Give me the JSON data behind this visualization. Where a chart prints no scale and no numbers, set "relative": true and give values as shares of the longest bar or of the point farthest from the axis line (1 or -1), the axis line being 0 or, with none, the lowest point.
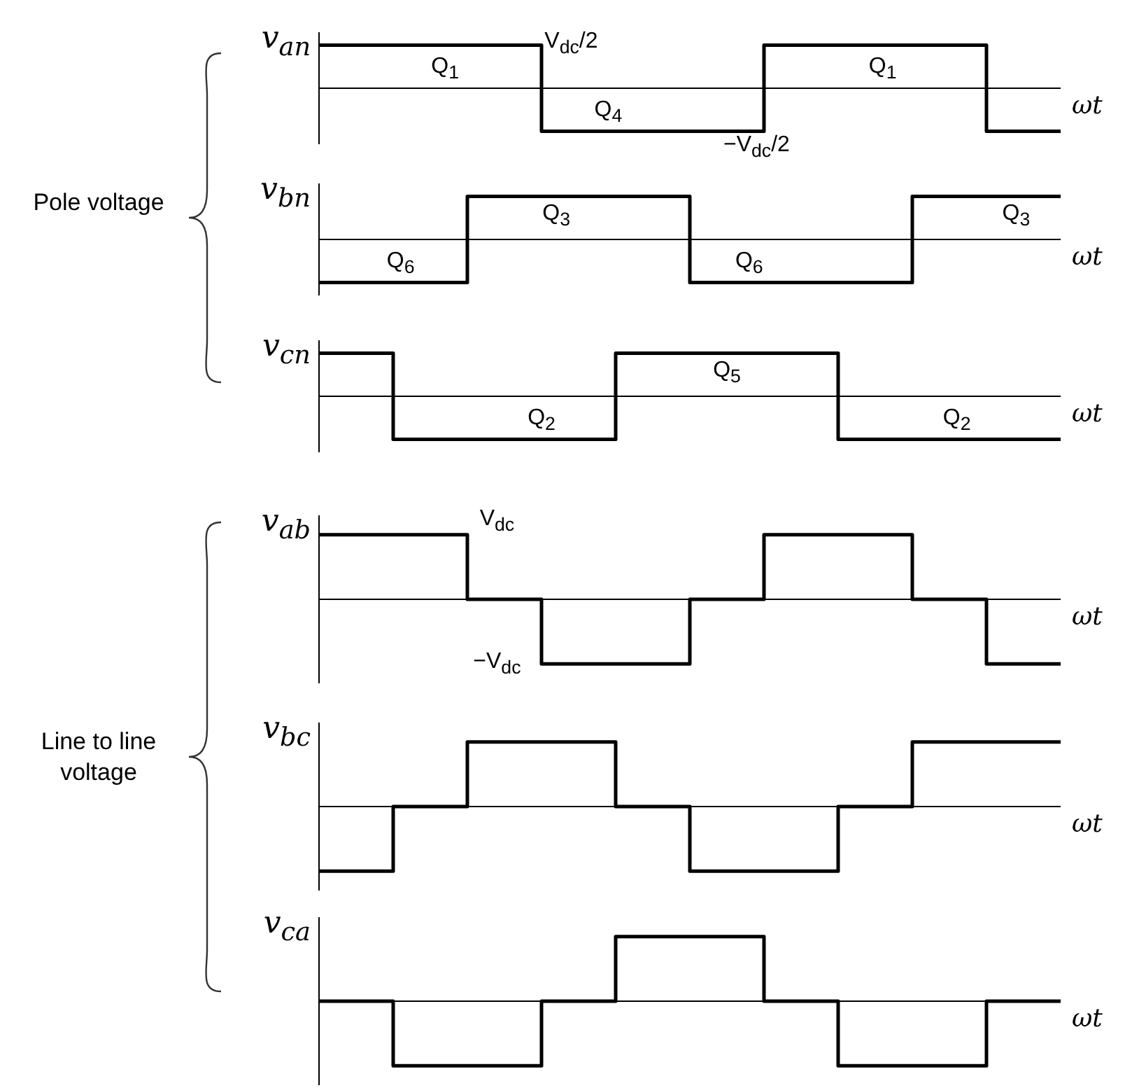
{
  "chart_data": [
    {
      "type": "step",
      "relative": true,
      "ylabel": "v$_{an}$",
      "xlabel": "ωt",
      "categories": [
        null,
        null,
        null,
        null,
        null,
        null,
        null,
        null,
        null,
        null,
        null
      ],
      "values": [
        1,
        1,
        1,
        -1,
        -1,
        -1,
        1,
        1,
        1,
        -1,
        -1
      ],
      "color": "#000000",
      "annotations": [
        "Q$_{1}$",
        "Q$_{4}$",
        "Q$_{1}$",
        "V$_{dc}$/2",
        "−V$_{dc}$/2",
        "Pole voltage"
      ]
    },
    {
      "type": "step",
      "relative": true,
      "ylabel": "v$_{bn}$",
      "xlabel": "ωt",
      "categories": [
        null,
        null,
        null,
        null,
        null,
        null,
        null,
        null,
        null,
        null,
        null
      ],
      "values": [
        -1,
        -1,
        1,
        1,
        1,
        -1,
        -1,
        -1,
        1,
        1,
        1
      ],
      "color": "#000000",
      "annotations": [
        "Q$_{6}$",
        "Q$_{3}$",
        "Q$_{6}$",
        "Q$_{3}$"
      ]
    },
    {
      "type": "step",
      "relative": true,
      "ylabel": "v$_{cn}$",
      "xlabel": "ωt",
      "categories": [
        null,
        null,
        null,
        null,
        null,
        null,
        null,
        null,
        null,
        null,
        null
      ],
      "values": [
        1,
        -1,
        -1,
        -1,
        1,
        1,
        1,
        -1,
        -1,
        -1,
        -1
      ],
      "color": "#000000",
      "annotations": [
        "Q$_{2}$",
        "Q$_{5}$",
        "Q$_{2}$"
      ]
    },
    {
      "type": "step",
      "relative": true,
      "ylabel": "v$_{ab}$",
      "xlabel": "ωt",
      "categories": [
        null,
        null,
        null,
        null,
        null,
        null,
        null,
        null,
        null,
        null,
        null
      ],
      "values": [
        1,
        1,
        0,
        -1,
        -1,
        0,
        1,
        1,
        0,
        -1,
        -1
      ],
      "color": "#000000",
      "annotations": [
        "V$_{dc}$",
        "−V$_{dc}$",
        "Line to line voltage"
      ]
    },
    {
      "type": "step",
      "relative": true,
      "ylabel": "v$_{bc}$",
      "xlabel": "ωt",
      "categories": [
        null,
        null,
        null,
        null,
        null,
        null,
        null,
        null,
        null,
        null,
        null
      ],
      "values": [
        -1,
        0,
        1,
        1,
        0,
        -1,
        -1,
        0,
        1,
        1,
        1
      ],
      "color": "#000000"
    },
    {
      "type": "step",
      "relative": true,
      "ylabel": "v$_{ca}$",
      "xlabel": "ωt",
      "categories": [
        null,
        null,
        null,
        null,
        null,
        null,
        null,
        null,
        null,
        null,
        null
      ],
      "values": [
        0,
        -1,
        -1,
        0,
        1,
        1,
        0,
        -1,
        -1,
        0,
        0
      ],
      "color": "#000000"
    }
  ]
}
